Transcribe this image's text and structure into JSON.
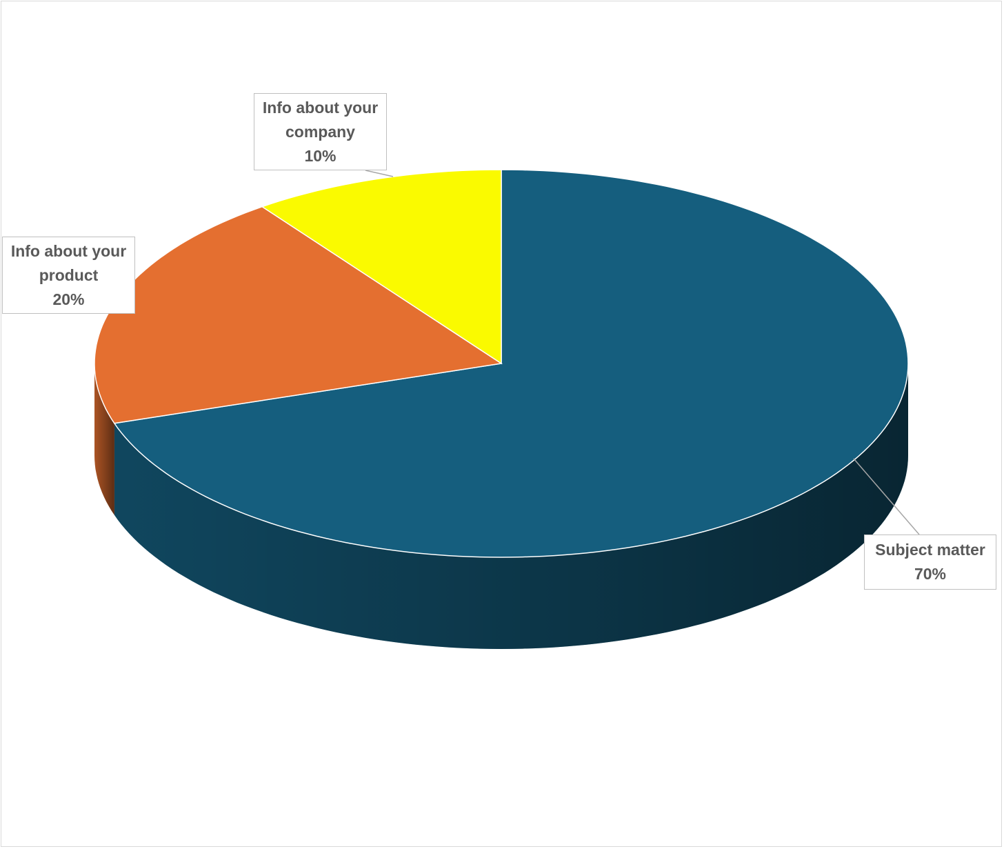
{
  "chart_data": {
    "type": "pie",
    "categories": [
      "Subject matter",
      "Info about your product",
      "Info about your company"
    ],
    "values": [
      70,
      20,
      10
    ],
    "value_labels": [
      "70%",
      "20%",
      "10%"
    ],
    "colors": [
      "#155e7e",
      "#e46f30",
      "#fafa00"
    ]
  }
}
